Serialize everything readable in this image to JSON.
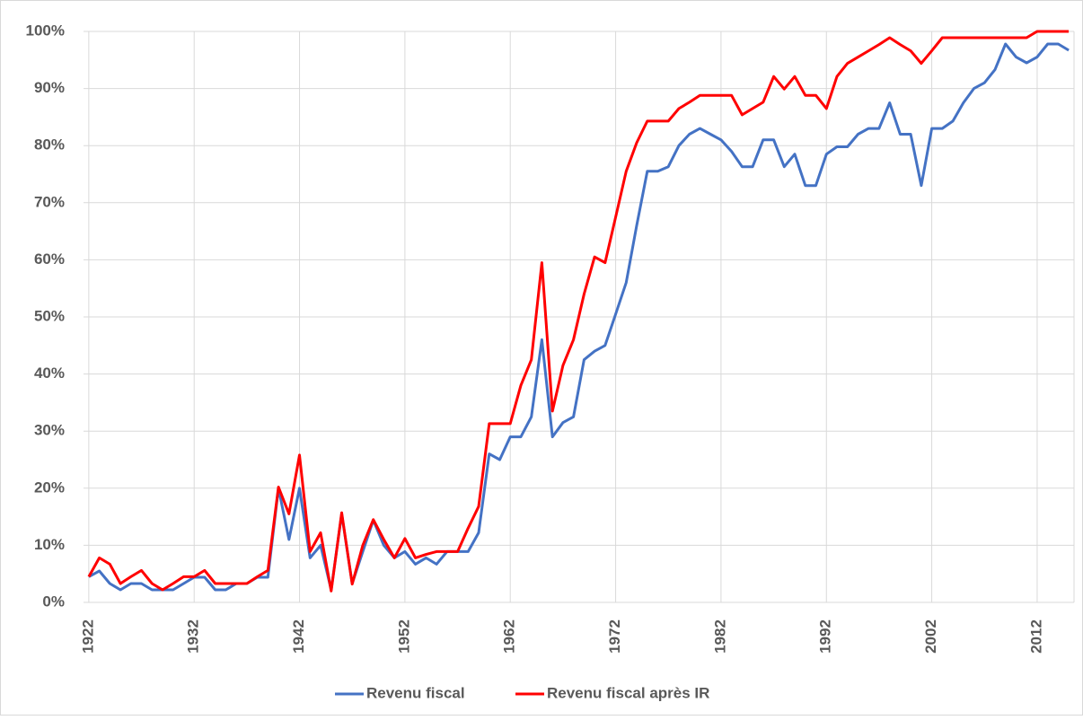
{
  "chart_data": {
    "type": "line",
    "x": [
      1922,
      1923,
      1924,
      1925,
      1926,
      1927,
      1928,
      1929,
      1930,
      1931,
      1932,
      1933,
      1934,
      1935,
      1936,
      1937,
      1938,
      1939,
      1940,
      1941,
      1942,
      1943,
      1944,
      1945,
      1946,
      1947,
      1948,
      1949,
      1950,
      1951,
      1952,
      1953,
      1954,
      1955,
      1956,
      1957,
      1958,
      1959,
      1960,
      1961,
      1962,
      1963,
      1964,
      1965,
      1966,
      1967,
      1968,
      1969,
      1970,
      1971,
      1972,
      1973,
      1974,
      1975,
      1976,
      1977,
      1978,
      1979,
      1980,
      1981,
      1982,
      1983,
      1984,
      1985,
      1986,
      1987,
      1988,
      1989,
      1990,
      1991,
      1992,
      1993,
      1994,
      1995,
      1996,
      1997,
      1998,
      1999,
      2000,
      2001,
      2002,
      2003,
      2004,
      2005,
      2006,
      2007,
      2008,
      2009,
      2010,
      2011,
      2012,
      2013,
      2014,
      2015
    ],
    "series": [
      {
        "name": "Revenu fiscal",
        "color": "#4472c4",
        "values": [
          4.5,
          5.5,
          3.3,
          2.2,
          3.3,
          3.3,
          2.2,
          2.2,
          2.2,
          3.3,
          4.4,
          4.4,
          2.2,
          2.2,
          3.3,
          3.3,
          4.4,
          4.4,
          20,
          11,
          20,
          7.8,
          10,
          2.2,
          15.5,
          3.3,
          8.9,
          14.4,
          10,
          7.8,
          8.9,
          6.7,
          7.8,
          6.7,
          8.9,
          8.9,
          8.9,
          12.2,
          26,
          25,
          29,
          29,
          32.5,
          46,
          29,
          31.5,
          32.5,
          42.5,
          44,
          45,
          50.5,
          56,
          66,
          75.5,
          75.5,
          76.3,
          80,
          82,
          83,
          82,
          81,
          79,
          76.3,
          76.3,
          81,
          81,
          76.3,
          78.5,
          73,
          73,
          78.5,
          79.8,
          79.8,
          82,
          83,
          83,
          87.5,
          82,
          82,
          73,
          83,
          83,
          84.3,
          87.5,
          90,
          91,
          93.3,
          97.8,
          95.5,
          94.5,
          95.5,
          97.8,
          97.8,
          96.7
        ]
      },
      {
        "name": "Revenu fiscal après IR",
        "color": "#ff0000",
        "values": [
          4.5,
          7.8,
          6.7,
          3.3,
          4.5,
          5.6,
          3.3,
          2.2,
          3.3,
          4.5,
          4.5,
          5.6,
          3.3,
          3.3,
          3.3,
          3.3,
          4.5,
          5.6,
          20.2,
          15.5,
          25.8,
          8.9,
          12.2,
          2,
          15.7,
          3.2,
          10,
          14.5,
          11,
          7.8,
          11.2,
          7.8,
          8.4,
          8.9,
          8.9,
          8.9,
          13,
          16.8,
          31.3,
          31.3,
          31.3,
          38,
          42.5,
          59.5,
          33.5,
          41.5,
          46,
          54,
          60.5,
          59.5,
          67.5,
          75.5,
          80.5,
          84.3,
          84.3,
          84.3,
          86.5,
          87.6,
          88.8,
          88.8,
          88.8,
          88.8,
          85.4,
          86.5,
          87.6,
          92.1,
          89.9,
          92.1,
          88.8,
          88.8,
          86.5,
          92.1,
          94.4,
          95.5,
          96.6,
          97.7,
          98.9,
          97.7,
          96.6,
          94.4,
          96.6,
          98.9,
          98.9,
          98.9,
          98.9,
          98.9,
          98.9,
          98.9,
          98.9,
          98.9,
          100,
          100,
          100,
          100
        ]
      }
    ],
    "xlim": [
      1921.5,
      2015.5
    ],
    "xticks": [
      1922,
      1932,
      1942,
      1952,
      1962,
      1972,
      1982,
      1992,
      2002,
      2012
    ],
    "ylim": [
      0,
      100
    ],
    "yticks": [
      {
        "value": 0,
        "label": "0%"
      },
      {
        "value": 10,
        "label": "10%"
      },
      {
        "value": 20,
        "label": "20%"
      },
      {
        "value": 30,
        "label": "30%"
      },
      {
        "value": 40,
        "label": "40%"
      },
      {
        "value": 50,
        "label": "50%"
      },
      {
        "value": 60,
        "label": "60%"
      },
      {
        "value": 70,
        "label": "70%"
      },
      {
        "value": 80,
        "label": "80%"
      },
      {
        "value": 90,
        "label": "90%"
      },
      {
        "value": 100,
        "label": "100%"
      }
    ],
    "grid": true,
    "legend": "bottom"
  }
}
